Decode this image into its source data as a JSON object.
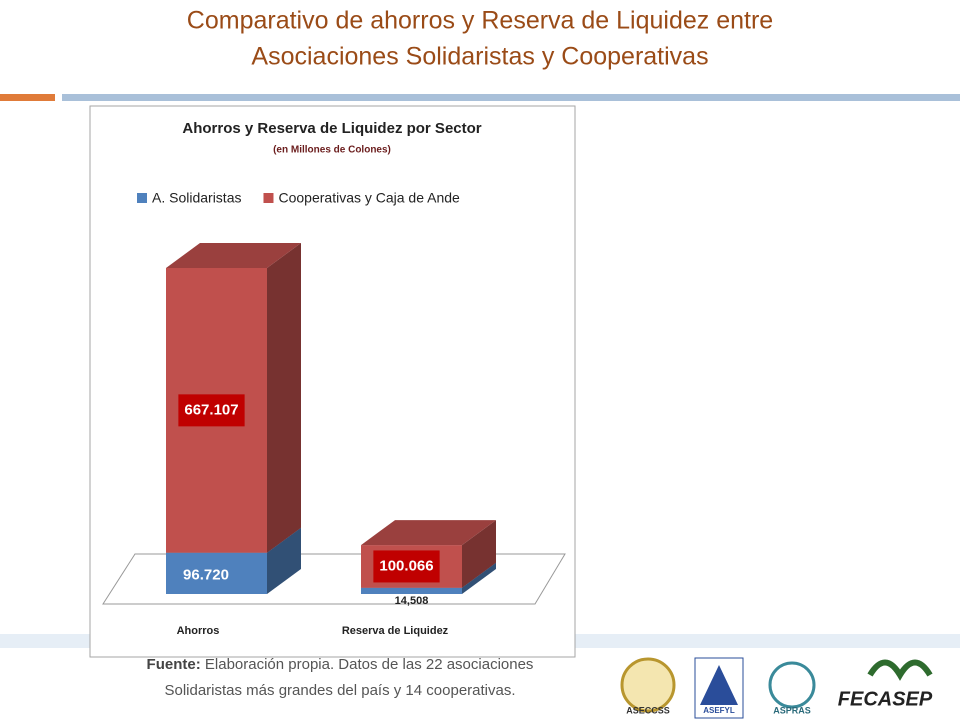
{
  "title": [
    "Comparativo de ahorros y Reserva de Liquidez entre",
    "Asociaciones Solidaristas y Cooperativas"
  ],
  "chart_data": {
    "type": "bar3d-stacked",
    "title": "Ahorros y Reserva de Liquidez por Sector",
    "subtitle": "(en Millones de Colones)",
    "categories": [
      "Ahorros",
      "Reserva de Liquidez"
    ],
    "series": [
      {
        "name": "A. Solidaristas",
        "color": "#4f81bd",
        "values": [
          96720,
          14508
        ],
        "value_labels": [
          "96.720",
          "14,508"
        ]
      },
      {
        "name": "Cooperativas y Caja de Ande",
        "color": "#c0504d",
        "values": [
          667107,
          100066
        ],
        "value_labels": [
          "667.107",
          "100.066"
        ]
      }
    ]
  },
  "footer": {
    "source_label": "Fuente:",
    "lines": [
      "Elaboración propia. Datos de las 22 asociaciones",
      "Solidaristas más grandes del país y 14 cooperativas."
    ]
  },
  "logos": [
    "ASECCSS",
    "ASEFYL",
    "ASPRAS",
    "FECASEP"
  ]
}
